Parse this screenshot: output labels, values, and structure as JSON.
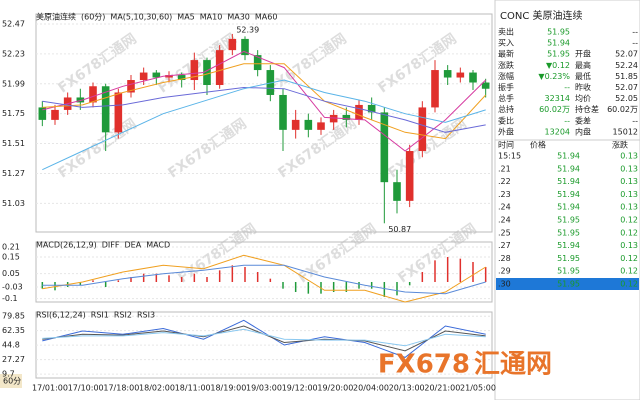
{
  "chart_data": [
    {
      "type": "candlestick",
      "title": "美原油连续",
      "period": "(60分)",
      "indicator": "MA(5,10,30,60)",
      "open": [
        51.8,
        51.7,
        51.78,
        51.88,
        51.84,
        51.97,
        51.6,
        51.92,
        52.02,
        52.08,
        52.04,
        52.06,
        52.02,
        52.18,
        51.98,
        52.26,
        52.35,
        52.22,
        52.1,
        51.9,
        51.62,
        51.7,
        51.62,
        51.68,
        51.74,
        51.7,
        51.82,
        51.76,
        51.2,
        51.05,
        51.45,
        51.8,
        52.1,
        52.04,
        52.08,
        52.0
      ],
      "close": [
        51.7,
        51.78,
        51.88,
        51.84,
        51.97,
        51.6,
        51.92,
        52.02,
        52.08,
        52.04,
        52.06,
        52.02,
        52.18,
        51.98,
        52.26,
        52.35,
        52.22,
        52.1,
        51.9,
        51.62,
        51.7,
        51.62,
        51.68,
        51.74,
        51.7,
        51.82,
        51.76,
        51.2,
        51.05,
        51.45,
        51.8,
        52.1,
        52.04,
        52.08,
        52.0,
        51.95
      ],
      "high": [
        51.85,
        51.82,
        51.92,
        51.95,
        52.0,
        51.99,
        51.95,
        52.06,
        52.12,
        52.1,
        52.09,
        52.08,
        52.24,
        52.2,
        52.3,
        52.39,
        52.37,
        52.26,
        52.14,
        51.95,
        51.78,
        51.75,
        51.72,
        51.78,
        51.8,
        51.86,
        51.88,
        51.8,
        51.3,
        51.5,
        51.85,
        52.18,
        52.14,
        52.12,
        52.1,
        52.03
      ],
      "low": [
        51.65,
        51.66,
        51.74,
        51.78,
        51.8,
        51.45,
        51.55,
        51.88,
        51.98,
        51.98,
        52.0,
        51.96,
        51.94,
        51.9,
        51.95,
        52.22,
        52.18,
        52.05,
        51.85,
        51.45,
        51.55,
        51.56,
        51.58,
        51.62,
        51.64,
        51.66,
        51.7,
        50.87,
        50.95,
        51.0,
        51.4,
        51.76,
        51.98,
        52.0,
        51.94,
        51.88
      ],
      "up_color": "#e0302c",
      "down_color": "#1f9a3a",
      "series": [
        {
          "name": "MA5",
          "color": "#d63aa0",
          "values": [
            51.78,
            51.86,
            51.97,
            52.05,
            52.08,
            52.25,
            52.12,
            51.72,
            51.7,
            51.45,
            51.7,
            52.02
          ]
        },
        {
          "name": "MA10",
          "color": "#f0a020",
          "values": [
            51.8,
            51.82,
            51.92,
            52.0,
            52.06,
            52.15,
            52.15,
            51.85,
            51.72,
            51.6,
            51.55,
            51.9
          ]
        },
        {
          "name": "MA30",
          "color": "#6a6ad8",
          "values": [
            51.85,
            51.8,
            51.82,
            51.88,
            51.92,
            51.96,
            51.95,
            51.85,
            51.78,
            51.7,
            51.6,
            51.66
          ]
        },
        {
          "name": "MA60",
          "color": "#5ab4e8",
          "values": [
            51.3,
            51.45,
            51.6,
            51.75,
            51.85,
            51.95,
            52.02,
            51.92,
            51.85,
            51.75,
            51.68,
            51.78
          ]
        }
      ],
      "high_mark": 52.39,
      "low_mark": 50.87,
      "ylim": [
        50.8,
        52.55
      ],
      "yticks": [
        52.47,
        52.23,
        51.99,
        51.75,
        51.51,
        51.27,
        51.03
      ],
      "x_labels": [
        "17/01:00",
        "17/10:00",
        "17/18:00",
        "18/02:00",
        "18/11:00",
        "18/19:00",
        "19/03:00",
        "19/12:00",
        "19/20:00",
        "20/04:00",
        "20/13:00",
        "20/21:00",
        "21/05:00"
      ]
    },
    {
      "type": "macd",
      "title": "MACD(26,12,9)",
      "hist_name": "MACD",
      "pos_color": "#e0302c",
      "neg_color": "#1f9a3a",
      "values": [
        -0.04,
        -0.05,
        -0.03,
        -0.02,
        0.01,
        -0.03,
        0.01,
        0.03,
        0.05,
        0.05,
        0.04,
        0.03,
        0.05,
        0.03,
        0.07,
        0.1,
        0.09,
        0.06,
        0.02,
        -0.04,
        -0.06,
        -0.07,
        -0.07,
        -0.06,
        -0.06,
        -0.04,
        -0.04,
        -0.09,
        -0.08,
        -0.02,
        0.06,
        0.13,
        0.15,
        0.14,
        0.12,
        0.09
      ],
      "series": [
        {
          "name": "DIFF",
          "color": "#f0a020",
          "values": [
            -0.04,
            0.0,
            0.06,
            0.1,
            0.08,
            0.16,
            0.1,
            -0.05,
            -0.05,
            -0.12,
            -0.06,
            0.09
          ]
        },
        {
          "name": "DEA",
          "color": "#5a8ad8",
          "values": [
            -0.02,
            -0.02,
            0.02,
            0.05,
            0.07,
            0.1,
            0.1,
            0.03,
            -0.02,
            -0.06,
            -0.07,
            0.0
          ]
        }
      ],
      "ylim": [
        -0.12,
        0.24
      ],
      "yticks": [
        0.21,
        0.15,
        0.05,
        -0.03,
        -0.1
      ]
    },
    {
      "type": "rsi",
      "title": "RSI(6,12,24)",
      "series": [
        {
          "name": "RSI1",
          "color": "#3a6ad8",
          "values": [
            50,
            62,
            58,
            65,
            52,
            75,
            45,
            55,
            48,
            30,
            68,
            58
          ]
        },
        {
          "name": "RSI2",
          "color": "#555555",
          "values": [
            52,
            58,
            57,
            62,
            55,
            68,
            48,
            52,
            50,
            38,
            62,
            56
          ]
        },
        {
          "name": "RSI3",
          "color": "#8ac8f0",
          "values": [
            53,
            56,
            56,
            60,
            56,
            64,
            52,
            51,
            51,
            44,
            58,
            55
          ]
        }
      ],
      "ylim": [
        5,
        85
      ],
      "yticks": [
        79.85,
        62.35,
        44.8,
        27.27,
        9.7
      ]
    }
  ],
  "footer": {
    "period": "60分"
  },
  "watermark": "FX678汇通网",
  "logo": {
    "brand": "FX678",
    "name": "汇通网"
  },
  "quote": {
    "title": "CONC 美原油连续",
    "rows": [
      [
        "卖出",
        "51.95",
        "--"
      ],
      [
        "买入",
        "51.94",
        "--"
      ],
      [
        "最新",
        "51.95",
        "开盘",
        "52.07"
      ],
      [
        "涨跌",
        "▼0.12",
        "最高",
        "52.24"
      ],
      [
        "涨幅",
        "▼0.23%",
        "最低",
        "51.85"
      ],
      [
        "振手",
        "--",
        "昨收",
        "52.07"
      ],
      [
        "总手",
        "32314",
        "均价",
        "52.05"
      ],
      [
        "总持",
        "60.02万",
        "持仓差",
        "60.02万"
      ],
      [
        "委比",
        "--",
        "委差",
        "--"
      ],
      [
        "外盘",
        "13204",
        "内盘",
        "15012"
      ]
    ],
    "tick_header": [
      "时间",
      "价格",
      "涨跌"
    ],
    "ticks": [
      [
        "15:15",
        "51.94",
        "0.13"
      ],
      [
        ".21",
        "51.94",
        "0.13"
      ],
      [
        ".22",
        "51.94",
        "0.13"
      ],
      [
        ".23",
        "51.94",
        "0.13"
      ],
      [
        ".24",
        "51.94",
        "0.13"
      ],
      [
        ".24",
        "51.95",
        "0.12"
      ],
      [
        ".25",
        "51.95",
        "0.12"
      ],
      [
        ".27",
        "51.94",
        "0.13"
      ],
      [
        ".28",
        "51.95",
        "0.12"
      ],
      [
        ".29",
        "51.95",
        "0.12"
      ],
      [
        ".30",
        "51.95",
        "0.12"
      ]
    ]
  }
}
